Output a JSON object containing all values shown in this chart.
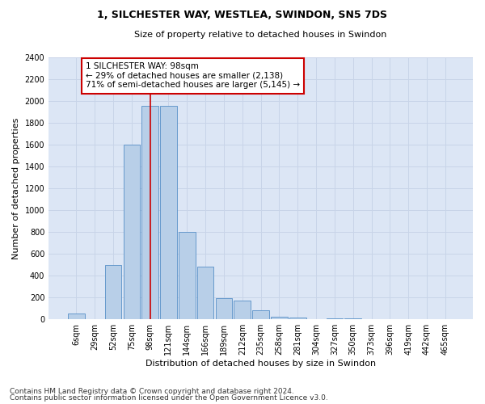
{
  "title": "1, SILCHESTER WAY, WESTLEA, SWINDON, SN5 7DS",
  "subtitle": "Size of property relative to detached houses in Swindon",
  "xlabel": "Distribution of detached houses by size in Swindon",
  "ylabel": "Number of detached properties",
  "categories": [
    "6sqm",
    "29sqm",
    "52sqm",
    "75sqm",
    "98sqm",
    "121sqm",
    "144sqm",
    "166sqm",
    "189sqm",
    "212sqm",
    "235sqm",
    "258sqm",
    "281sqm",
    "304sqm",
    "327sqm",
    "350sqm",
    "373sqm",
    "396sqm",
    "419sqm",
    "442sqm",
    "465sqm"
  ],
  "values": [
    50,
    0,
    500,
    1600,
    1950,
    1950,
    800,
    480,
    195,
    175,
    85,
    25,
    20,
    5,
    10,
    10,
    0,
    0,
    0,
    0,
    0
  ],
  "bar_color": "#b8cfe8",
  "bar_edge_color": "#6699cc",
  "highlight_bar_index": 4,
  "highlight_line_color": "#cc0000",
  "annotation_text": "1 SILCHESTER WAY: 98sqm\n← 29% of detached houses are smaller (2,138)\n71% of semi-detached houses are larger (5,145) →",
  "annotation_box_color": "#ffffff",
  "annotation_box_edge_color": "#cc0000",
  "ylim": [
    0,
    2400
  ],
  "yticks": [
    0,
    200,
    400,
    600,
    800,
    1000,
    1200,
    1400,
    1600,
    1800,
    2000,
    2200,
    2400
  ],
  "grid_color": "#c8d4e8",
  "background_color": "#dce6f5",
  "footer_line1": "Contains HM Land Registry data © Crown copyright and database right 2024.",
  "footer_line2": "Contains public sector information licensed under the Open Government Licence v3.0.",
  "title_fontsize": 9,
  "subtitle_fontsize": 8,
  "axis_label_fontsize": 8,
  "tick_fontsize": 7,
  "annotation_fontsize": 7.5,
  "footer_fontsize": 6.5
}
